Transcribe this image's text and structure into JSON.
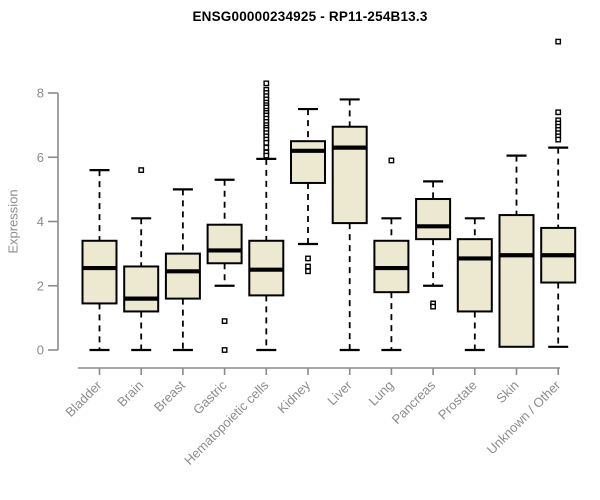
{
  "chart_data": {
    "type": "boxplot",
    "title": "ENSG00000234925 - RP11-254B13.3",
    "ylabel": "Expression",
    "xlabel": "",
    "ylim": [
      0,
      8
    ],
    "yticks": [
      0,
      2,
      4,
      6,
      8
    ],
    "grid": false,
    "legend": "none",
    "colors": {
      "box_fill": "#EDE8D0",
      "box_stroke": "#000000",
      "median": "#000000",
      "whisker": "#000000",
      "outlier_stroke": "#000000",
      "axis": "#8B8B8B",
      "tick_label": "#8C8C8C",
      "title": "#000000"
    },
    "categories": [
      {
        "label": "Bladder",
        "low": 0,
        "q1": 1.45,
        "median": 2.55,
        "q3": 3.4,
        "high": 5.6,
        "outliers": []
      },
      {
        "label": "Brain",
        "low": 0,
        "q1": 1.2,
        "median": 1.6,
        "q3": 2.6,
        "high": 4.1,
        "outliers": [
          5.6
        ]
      },
      {
        "label": "Breast",
        "low": 0,
        "q1": 1.6,
        "median": 2.45,
        "q3": 3.0,
        "high": 5.0,
        "outliers": []
      },
      {
        "label": "Gastric",
        "low": 2.0,
        "q1": 2.7,
        "median": 3.1,
        "q3": 3.9,
        "high": 5.3,
        "outliers": [
          0.9,
          0
        ]
      },
      {
        "label": "Hematopoietic cells",
        "low": 0,
        "q1": 1.7,
        "median": 2.5,
        "q3": 3.4,
        "high": 5.95,
        "outliers": [
          8.3,
          8.1,
          8.0,
          7.9,
          7.8,
          7.7,
          7.62,
          7.55,
          7.45,
          7.38,
          7.3,
          7.2,
          7.1,
          7.0,
          6.92,
          6.85,
          6.75,
          6.65,
          6.55,
          6.45,
          6.3,
          6.15,
          6.05
        ]
      },
      {
        "label": "Kidney",
        "low": 3.3,
        "q1": 5.2,
        "median": 6.2,
        "q3": 6.5,
        "high": 7.5,
        "outliers": [
          2.85,
          2.6,
          2.45
        ]
      },
      {
        "label": "Liver",
        "low": 0,
        "q1": 3.95,
        "median": 6.3,
        "q3": 6.95,
        "high": 7.8,
        "outliers": []
      },
      {
        "label": "Lung",
        "low": 0,
        "q1": 1.8,
        "median": 2.55,
        "q3": 3.4,
        "high": 4.1,
        "outliers": [
          5.9
        ]
      },
      {
        "label": "Pancreas",
        "low": 2.0,
        "q1": 3.45,
        "median": 3.85,
        "q3": 4.7,
        "high": 5.25,
        "outliers": [
          1.45,
          1.35
        ]
      },
      {
        "label": "Prostate",
        "low": 0,
        "q1": 1.2,
        "median": 2.85,
        "q3": 3.45,
        "high": 4.1,
        "outliers": []
      },
      {
        "label": "Skin",
        "low": 0.1,
        "q1": 0.1,
        "median": 2.95,
        "q3": 4.2,
        "high": 6.05,
        "outliers": []
      },
      {
        "label": "Unknown / Other",
        "low": 0.1,
        "q1": 2.1,
        "median": 2.95,
        "q3": 3.8,
        "high": 6.3,
        "outliers": [
          9.6,
          7.4,
          7.15,
          7.05,
          6.95,
          6.85,
          6.75,
          6.65,
          6.55
        ]
      }
    ]
  }
}
